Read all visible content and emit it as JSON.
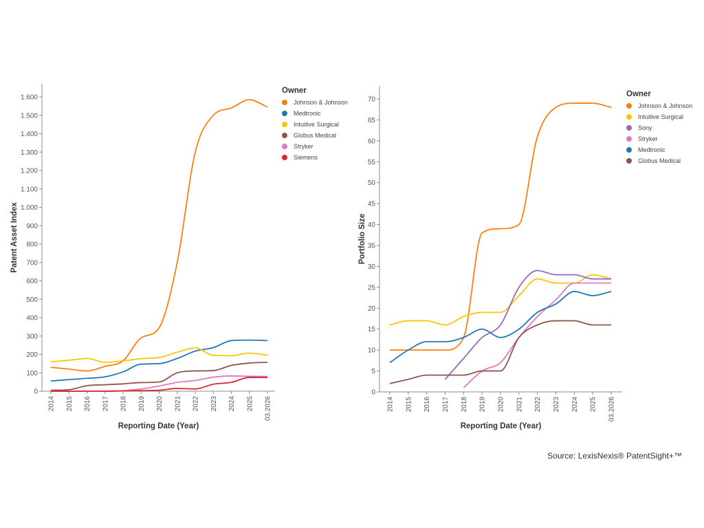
{
  "source": "Source: LexisNexis® PatentSight+™",
  "chart_data": [
    {
      "type": "line",
      "xlabel": "Reporting Date (Year)",
      "ylabel": "Patent Asset Index",
      "ylim": [
        0,
        1650
      ],
      "yticks": [
        0,
        100,
        200,
        300,
        400,
        500,
        600,
        700,
        800,
        900,
        1000,
        1100,
        1200,
        1300,
        1400,
        1500,
        1600
      ],
      "ytick_labels": [
        "0",
        "100",
        "200",
        "300",
        "400",
        "500",
        "600",
        "700",
        "800",
        "900",
        "1.000",
        "1.100",
        "1.200",
        "1.300",
        "1.400",
        "1.500",
        "1.600"
      ],
      "categories": [
        "2014",
        "2015",
        "2016",
        "2017",
        "2018",
        "2019",
        "2020",
        "2021",
        "2022",
        "2023",
        "2024",
        "2025",
        "03.2026"
      ],
      "legend_title": "Owner",
      "legend_position": "right",
      "grid": false,
      "series": [
        {
          "name": "Johnson & Johnson",
          "color": "#ff7f0e",
          "values": [
            130,
            120,
            110,
            135,
            165,
            290,
            345,
            700,
            1300,
            1500,
            1540,
            1585,
            1545
          ]
        },
        {
          "name": "Medtronic",
          "color": "#1f77b4",
          "values": [
            55,
            63,
            70,
            78,
            105,
            147,
            150,
            178,
            218,
            237,
            275,
            278,
            275
          ]
        },
        {
          "name": "Intuitive Surgical",
          "color": "#ffc400",
          "values": [
            160,
            168,
            178,
            157,
            165,
            177,
            183,
            212,
            235,
            195,
            193,
            207,
            196
          ]
        },
        {
          "name": "Globus Medical",
          "color": "#8c564b",
          "values": [
            5,
            8,
            30,
            35,
            40,
            47,
            50,
            100,
            110,
            112,
            140,
            153,
            157
          ]
        },
        {
          "name": "Stryker",
          "color": "#e377c2",
          "values": [
            0,
            0,
            0,
            0,
            2,
            12,
            28,
            48,
            58,
            76,
            83,
            81,
            80
          ]
        },
        {
          "name": "Siemens",
          "color": "#d62728",
          "values": [
            0,
            0,
            0,
            0,
            2,
            3,
            5,
            15,
            12,
            38,
            48,
            75,
            75
          ]
        }
      ]
    },
    {
      "type": "line",
      "xlabel": "Reporting Date (Year)",
      "ylabel": "Portfolio Size",
      "ylim": [
        0,
        72
      ],
      "yticks": [
        0,
        5,
        10,
        15,
        20,
        25,
        30,
        35,
        40,
        45,
        50,
        55,
        60,
        65,
        70
      ],
      "ytick_labels": [
        "0",
        "5",
        "10",
        "15",
        "20",
        "25",
        "30",
        "35",
        "40",
        "45",
        "50",
        "55",
        "60",
        "65",
        "70"
      ],
      "categories": [
        "2014",
        "2015",
        "2016",
        "2017",
        "2018",
        "2019",
        "2020",
        "2021",
        "2022",
        "2023",
        "2024",
        "2025",
        "03.2026"
      ],
      "legend_title": "Owner",
      "legend_position": "right",
      "grid": false,
      "series": [
        {
          "name": "Johnson & Johnson",
          "color": "#ff7f0e",
          "values": [
            10,
            10,
            10,
            10,
            13,
            38,
            39,
            40,
            61,
            68,
            69,
            69,
            68
          ]
        },
        {
          "name": "Intuitive Surgical",
          "color": "#ffc400",
          "values": [
            16,
            17,
            17,
            16,
            18,
            19,
            19,
            23,
            27,
            26,
            26,
            28,
            27
          ]
        },
        {
          "name": "Sony",
          "color": "#9467bd",
          "values": [
            null,
            null,
            null,
            3,
            8,
            13,
            16,
            25,
            29,
            28,
            28,
            27,
            27
          ]
        },
        {
          "name": "Stryker",
          "color": "#e377c2",
          "values": [
            null,
            null,
            null,
            null,
            1,
            5,
            7,
            13,
            18,
            22,
            26,
            26,
            26
          ]
        },
        {
          "name": "Medtronic",
          "color": "#1f77b4",
          "values": [
            7,
            10,
            12,
            12,
            13,
            15,
            13,
            15,
            19,
            21,
            24,
            23,
            24
          ]
        },
        {
          "name": "Globus Medical",
          "color": "#8c564b",
          "values": [
            2,
            3,
            4,
            4,
            4,
            5,
            5,
            13,
            16,
            17,
            17,
            16,
            16
          ]
        }
      ]
    }
  ]
}
